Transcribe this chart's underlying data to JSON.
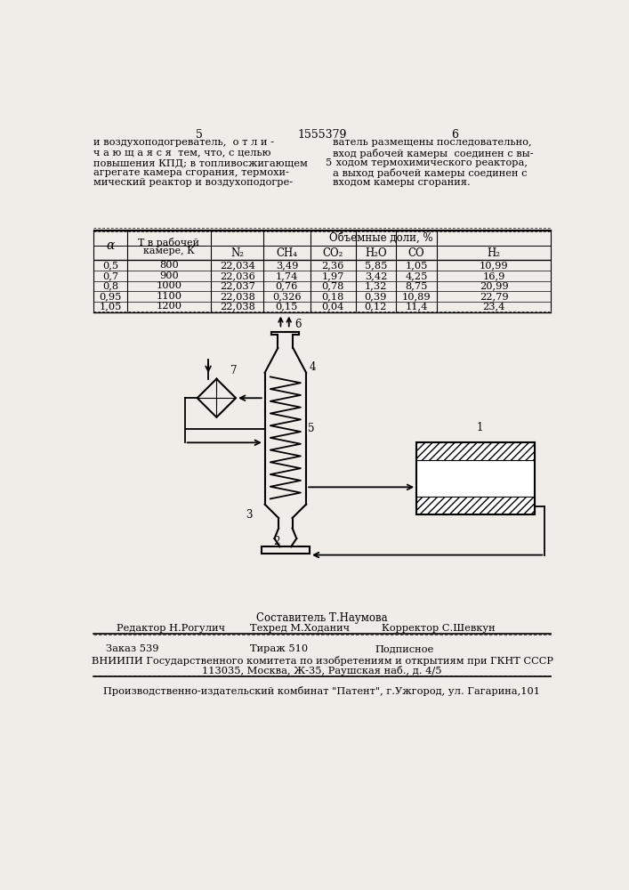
{
  "bg_color": "#f0ede8",
  "page_num_left": "5",
  "patent_num": "1555379",
  "page_num_right": "6",
  "col1_text": "и воздухоподогреватель,  о т л и -\nч а ю щ а я с я  тем, что, с целью\nповышения КПД; в топливосжигающем\nагрегате камера сгорания, термохи-\nмический реактор и воздухоподогре-",
  "col2_text_line5": "5",
  "col2_text": "ватель размещены последовательно,\nвход рабочей камеры  соединен с вы-\n ходом термохимического реактора,\nа выход рабочей камеры соединен с\nвходом камеры сгорания.",
  "table_header_alpha": "α",
  "table_header_T": "Т в рабочей\nкамере, К",
  "table_header_obj": "Объемные доли, %",
  "table_col_headers": [
    "N₂",
    "CH₄",
    "CO₂",
    "H₂O",
    "CO",
    "H₂"
  ],
  "table_data": [
    [
      "0,5",
      "800",
      "22,034",
      "3,49",
      "2,36",
      "5,85",
      "1,05",
      "10,99"
    ],
    [
      "0,7",
      "900",
      "22,036",
      "1,74",
      "1,97",
      "3,42",
      "4,25",
      "16,9"
    ],
    [
      "0,8",
      "1000",
      "22,037",
      "0,76",
      "0,78",
      "1,32",
      "8,75",
      "20,99"
    ],
    [
      "0,95",
      "1100",
      "22,038",
      "0,326",
      "0,18",
      "0,39",
      "10,89",
      "22,79"
    ],
    [
      "1,05",
      "1200",
      "22,038",
      "0,15",
      "0,04",
      "0,12",
      "11,4",
      "23,4"
    ]
  ],
  "footer_sostavitel": "Составитель Т.Наумова",
  "footer_redaktor": "Редактор Н.Рогулич",
  "footer_tekhred": "Техред М.Хoданич",
  "footer_korrektor": "Корректор С.Шевкун",
  "footer_zakaz": "Заказ 539",
  "footer_tirazh": "Тираж 510",
  "footer_podpisnoe": "Подписное",
  "footer_vniiipi": "ВНИИПИ Государственного комитета по изобретениям и открытиям при ГКНТ СССР",
  "footer_address": "113035, Москва, Ж-35, Раушская наб., д. 4/5",
  "footer_kombinat": "Производственно-издательский комбинат \"Патент\", г.Ужгород, ул. Гагарина,101"
}
